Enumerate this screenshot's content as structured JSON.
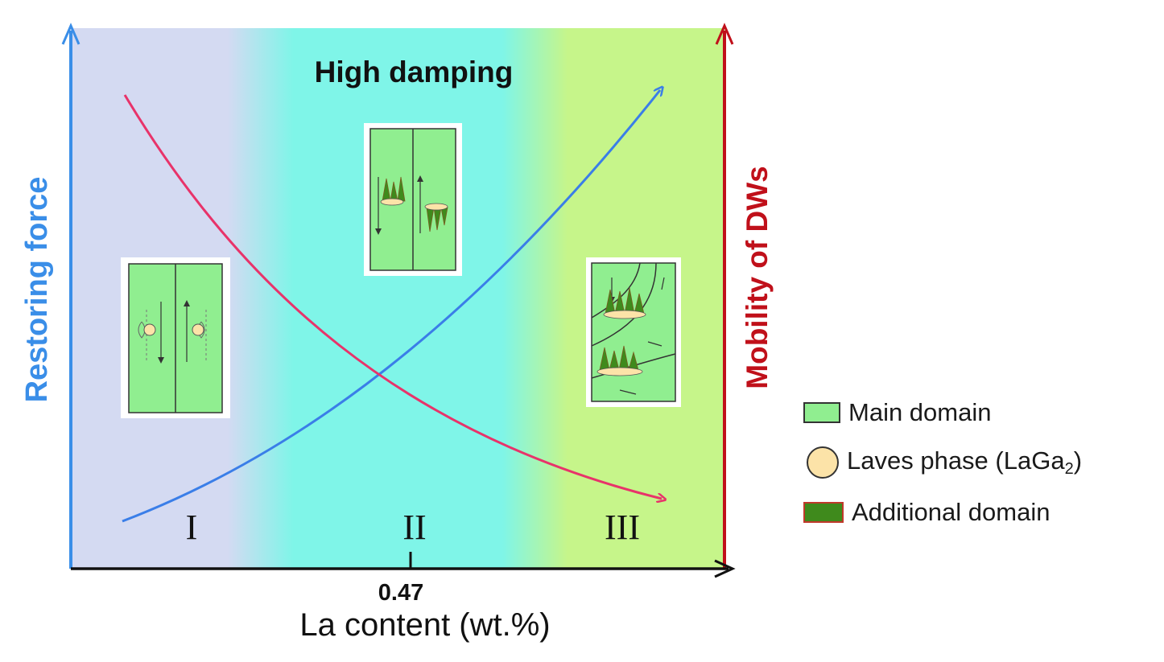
{
  "title": "High damping",
  "left_axis_label": "Restoring force",
  "right_axis_label": "Mobility of DWs",
  "x_axis_label": "La content (wt.%)",
  "x_tick_label": "0.47",
  "regions": [
    "I",
    "II",
    "III"
  ],
  "legend": {
    "main_domain": "Main domain",
    "laves_phase": "Laves phase (LaGa",
    "laves_phase_sub": "2",
    "laves_phase_end": ")",
    "additional_domain": "Additional domain"
  },
  "colors": {
    "restoring_force": "#3a7ee8",
    "mobility": "#e8336a",
    "left_axis": "#3a8ee8",
    "right_axis": "#c0101a",
    "region1_bg": "#d4daf2",
    "region2_bg": "#7ff5e8",
    "region3_bg": "#c6f58a",
    "main_domain": "#90ee90",
    "laves_phase": "#fce3a8",
    "additional_domain": "#3f8a1c"
  }
}
